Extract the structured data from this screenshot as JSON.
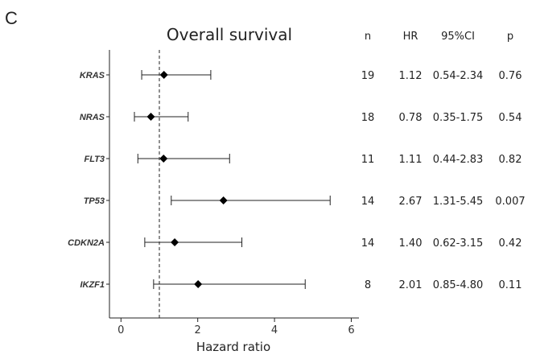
{
  "panel_label": "C",
  "chart_data": {
    "type": "forest",
    "title": "Overall survival",
    "xlabel": "Hazard ratio",
    "xlim": [
      -0.3,
      6.2
    ],
    "xticks": [
      0,
      2,
      4,
      6
    ],
    "reference_line": 1,
    "columns": [
      "n",
      "HR",
      "95%CI",
      "p"
    ],
    "rows": [
      {
        "gene": "KRAS",
        "n": "19",
        "hr": 1.12,
        "hr_text": "1.12",
        "lo": 0.54,
        "hi": 2.34,
        "ci_text": "0.54-2.34",
        "p": "0.76"
      },
      {
        "gene": "NRAS",
        "n": "18",
        "hr": 0.78,
        "hr_text": "0.78",
        "lo": 0.35,
        "hi": 1.75,
        "ci_text": "0.35-1.75",
        "p": "0.54"
      },
      {
        "gene": "FLT3",
        "n": "11",
        "hr": 1.11,
        "hr_text": "1.11",
        "lo": 0.44,
        "hi": 2.83,
        "ci_text": "0.44-2.83",
        "p": "0.82"
      },
      {
        "gene": "TP53",
        "n": "14",
        "hr": 2.67,
        "hr_text": "2.67",
        "lo": 1.31,
        "hi": 5.45,
        "ci_text": "1.31-5.45",
        "p": "0.007"
      },
      {
        "gene": "CDKN2A",
        "n": "14",
        "hr": 1.4,
        "hr_text": "1.40",
        "lo": 0.62,
        "hi": 3.15,
        "ci_text": "0.62-3.15",
        "p": "0.42"
      },
      {
        "gene": "IKZF1",
        "n": "8",
        "hr": 2.01,
        "hr_text": "2.01",
        "lo": 0.85,
        "hi": 4.8,
        "ci_text": "0.85-4.80",
        "p": "0.11"
      }
    ]
  }
}
